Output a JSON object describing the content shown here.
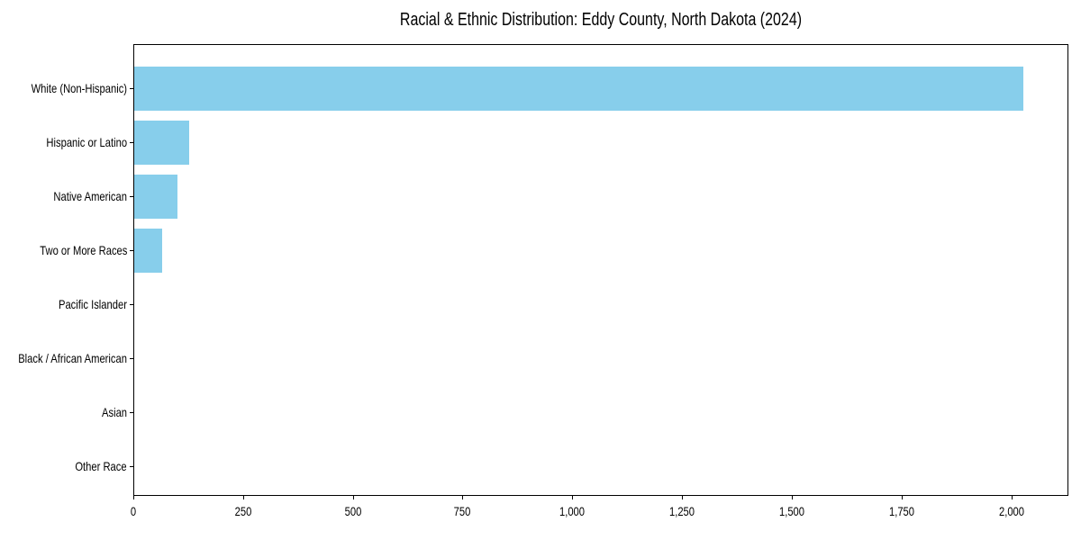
{
  "title": "Racial & Ethnic Distribution: Eddy County, North Dakota (2024)",
  "chart_data": {
    "type": "bar",
    "orientation": "horizontal",
    "title": "Racial & Ethnic Distribution: Eddy County, North Dakota (2024)",
    "categories": [
      "White (Non-Hispanic)",
      "Hispanic or Latino",
      "Native American",
      "Two or More Races",
      "Pacific Islander",
      "Black / African American",
      "Asian",
      "Other Race"
    ],
    "values": [
      2025,
      126,
      99,
      63,
      0,
      0,
      0,
      0
    ],
    "xlabel": "",
    "ylabel": "",
    "xlim": [
      0,
      2126
    ],
    "x_ticks": [
      0,
      250,
      500,
      750,
      1000,
      1250,
      1500,
      1750,
      2000
    ],
    "x_tick_labels": [
      "0",
      "250",
      "500",
      "750",
      "1,000",
      "1,250",
      "1,500",
      "1,750",
      "2,000"
    ],
    "grid": false,
    "legend": "none",
    "bar_color": "#87CEEB",
    "axis_color": "#000000",
    "background_color": "#FFFFFF",
    "text_color": "#000000"
  }
}
